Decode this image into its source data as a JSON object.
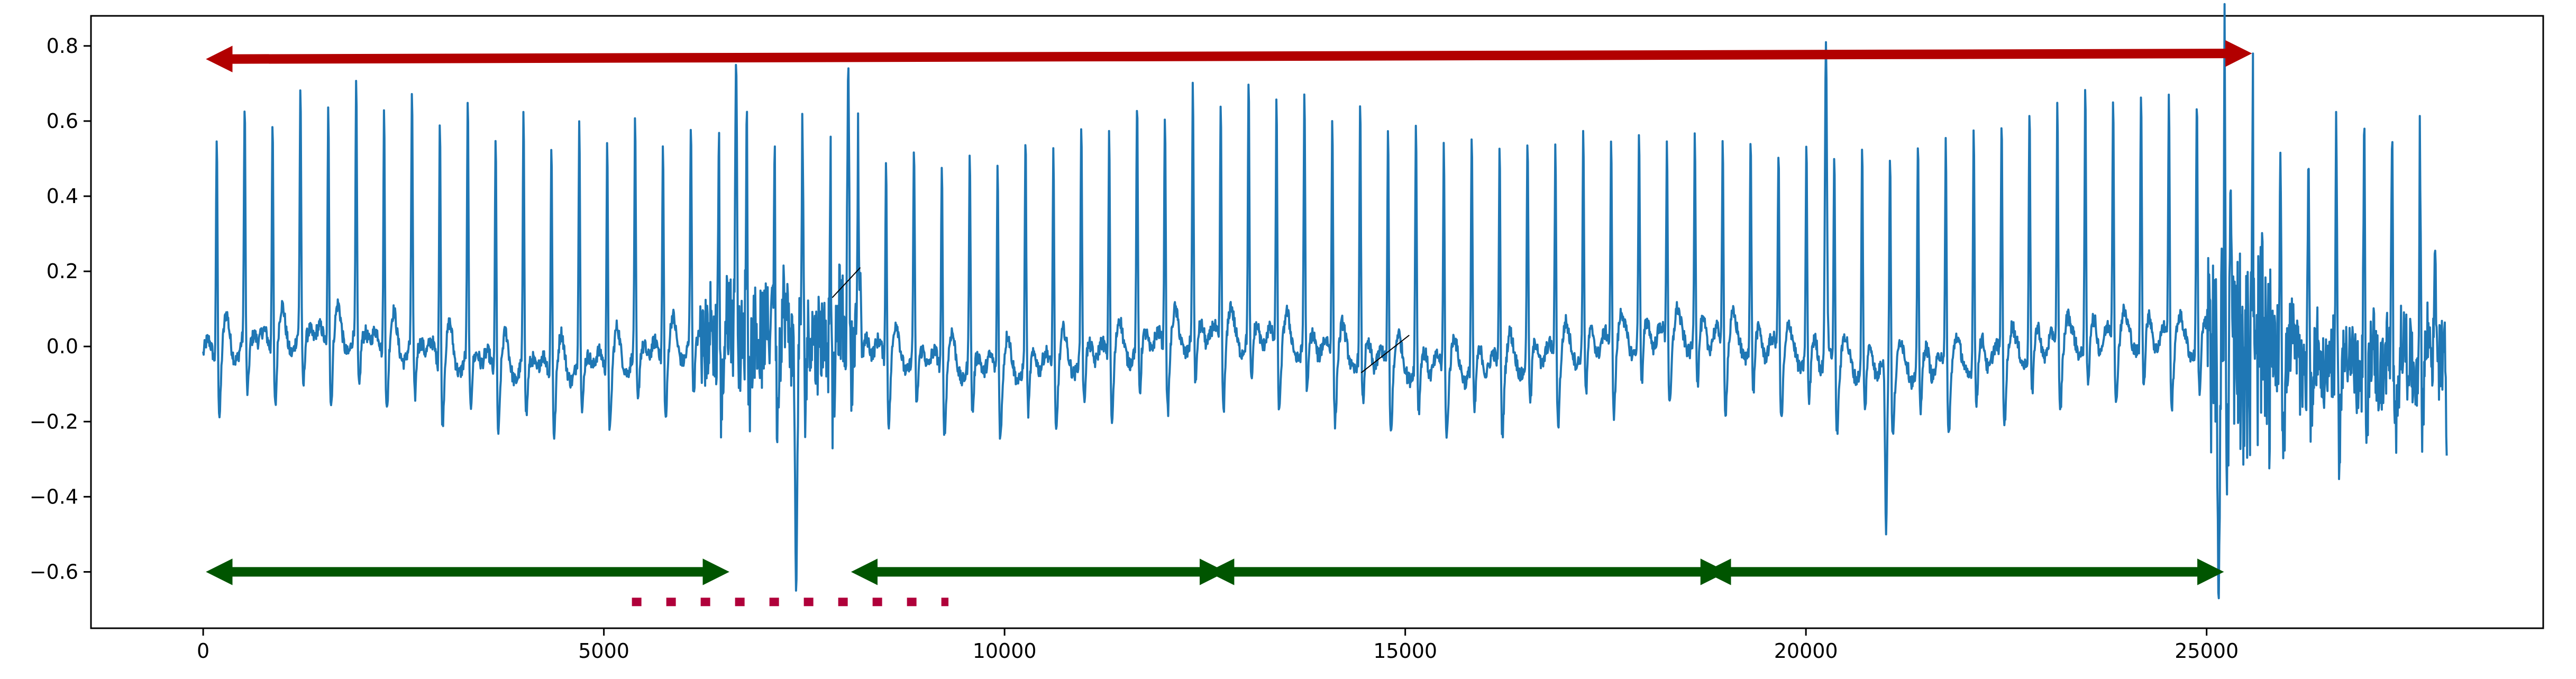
{
  "chart_data": {
    "type": "line",
    "title": "",
    "xlabel": "",
    "ylabel": "",
    "xlim": [
      -1400,
      29200
    ],
    "ylim": [
      -0.75,
      0.88
    ],
    "x_ticks": [
      0,
      5000,
      10000,
      15000,
      20000,
      25000
    ],
    "x_tick_labels": [
      "0",
      "5000",
      "10000",
      "15000",
      "20000",
      "25000"
    ],
    "y_ticks": [
      -0.6,
      -0.4,
      -0.2,
      0.0,
      0.2,
      0.4,
      0.6,
      0.8
    ],
    "y_tick_labels": [
      "−0.6",
      "−0.4",
      "−0.2",
      "0.0",
      "0.2",
      "0.4",
      "0.6",
      "0.8"
    ],
    "grid": false,
    "series": [
      {
        "color": "#1f77b4",
        "signal": {
          "start": 0,
          "end": 28000,
          "beat_interval": 348,
          "baseline": -0.02,
          "r_peak_range": [
            0.55,
            0.68
          ],
          "s_wave": -0.15,
          "noisy_segments": [
            [
              6200,
              8200
            ],
            [
              25000,
              28000
            ]
          ],
          "notable_points": [
            {
              "x": 6650,
              "y": 0.76
            },
            {
              "x": 7100,
              "y": 0.16
            },
            {
              "x": 7400,
              "y": -0.66
            },
            {
              "x": 8050,
              "y": 0.75
            },
            {
              "x": 8200,
              "y": 0.2
            },
            {
              "x": 20250,
              "y": 0.81
            },
            {
              "x": 21000,
              "y": -0.5
            },
            {
              "x": 25150,
              "y": -0.68
            },
            {
              "x": 25300,
              "y": 0.42
            },
            {
              "x": 27850,
              "y": 0.26
            },
            {
              "x": 28000,
              "y": -0.32
            }
          ]
        }
      }
    ],
    "annotations": {
      "red_arrow": {
        "x1": 200,
        "y1": 0.765,
        "x2": 25400,
        "y2": 0.78,
        "color": "#b20000"
      },
      "green_arrows": [
        {
          "x1": 200,
          "x2": 6400,
          "y": -0.6,
          "color": "#005500"
        },
        {
          "x1": 8250,
          "x2": 12600,
          "y": -0.6,
          "color": "#005500"
        },
        {
          "x1": 12700,
          "x2": 18850,
          "y": -0.6,
          "color": "#005500"
        },
        {
          "x1": 18900,
          "x2": 25050,
          "y": -0.6,
          "color": "#005500"
        }
      ],
      "dotted_line": {
        "x1": 5350,
        "x2": 9300,
        "y": -0.68,
        "color": "#b0003a"
      },
      "small_lines": [
        {
          "x1": 7850,
          "y1": 0.13,
          "x2": 8200,
          "y2": 0.21
        },
        {
          "x1": 14450,
          "y1": -0.07,
          "x2": 15050,
          "y2": 0.03
        }
      ]
    }
  }
}
